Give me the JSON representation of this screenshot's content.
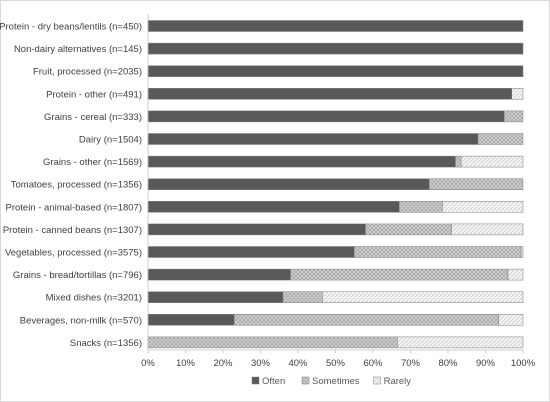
{
  "chart_data": {
    "type": "bar",
    "orientation": "horizontal",
    "stacked": true,
    "percent": true,
    "categories": [
      "Protein - dry beans/lentils (n=450)",
      "Non-dairy alternatives (n=145)",
      "Fruit, processed (n=2035)",
      "Protein - other (n=491)",
      "Grains - cereal (n=333)",
      "Dairy (n=1504)",
      "Grains - other (n=1569)",
      "Tomatoes, processed (n=1356)",
      "Protein - animal-based (n=1807)",
      "Protein - canned beans (n=1307)",
      "Vegetables, processed (n=3575)",
      "Grains - bread/tortillas (n=796)",
      "Mixed dishes (n=3201)",
      "Beverages, non-milk (n=570)",
      "Snacks (n=1356)"
    ],
    "series": [
      {
        "name": "Often",
        "color": "#595959",
        "pattern": "solid",
        "values": [
          100,
          100,
          100,
          97,
          95,
          88,
          82,
          75,
          67,
          58,
          55,
          38,
          36,
          23,
          0
        ]
      },
      {
        "name": "Sometimes",
        "color": "#bfbfbf",
        "pattern": "crosshatch",
        "values": [
          0,
          0,
          0,
          0,
          5,
          12,
          1.5,
          25,
          11.5,
          23,
          44.5,
          58,
          10.5,
          70.5,
          66.5
        ]
      },
      {
        "name": "Rarely",
        "color": "#e6e6e6",
        "pattern": "diagonal",
        "values": [
          0,
          0,
          0,
          3,
          0,
          0,
          16.5,
          0,
          21.5,
          19,
          0.5,
          4,
          53.5,
          6.5,
          33.5
        ]
      }
    ],
    "xlim": [
      0,
      100
    ],
    "xticks": [
      "0%",
      "10%",
      "20%",
      "30%",
      "40%",
      "50%",
      "60%",
      "70%",
      "80%",
      "90%",
      "100%"
    ],
    "legend_position": "bottom",
    "grid": false
  }
}
